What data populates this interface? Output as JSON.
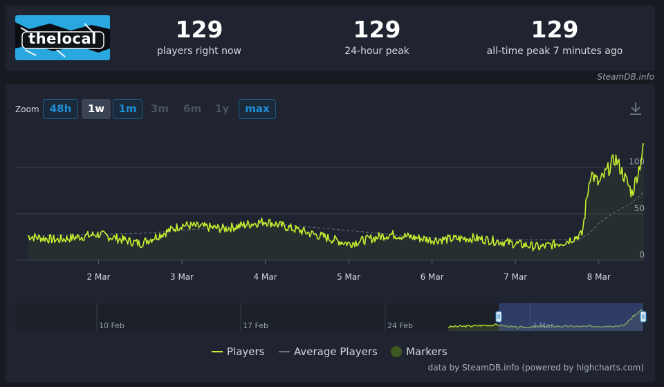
{
  "logo": {
    "text": "thelocal"
  },
  "stats": [
    {
      "value": "129",
      "label": "players right now"
    },
    {
      "value": "129",
      "label": "24-hour peak"
    },
    {
      "value": "129",
      "label": "all-time peak 7 minutes ago"
    }
  ],
  "credit_top": "SteamDB.info",
  "zoom": {
    "label": "Zoom",
    "buttons": [
      {
        "label": "48h",
        "state": "enabled"
      },
      {
        "label": "1w",
        "state": "selected"
      },
      {
        "label": "1m",
        "state": "enabled"
      },
      {
        "label": "3m",
        "state": "disabled"
      },
      {
        "label": "6m",
        "state": "disabled"
      },
      {
        "label": "1y",
        "state": "disabled"
      },
      {
        "label": "max",
        "state": "enabled"
      }
    ]
  },
  "download_icon": "download-icon",
  "legend": [
    {
      "label": "Players",
      "color": "#c6f02e",
      "kind": "line"
    },
    {
      "label": "Average Players",
      "color": "#6b7380",
      "kind": "line"
    },
    {
      "label": "Markers",
      "color": "#3e5a22",
      "kind": "dot"
    }
  ],
  "credit_bottom": "data by SteamDB.info (powered by highcharts.com)",
  "chart_data": {
    "type": "line",
    "x_ticks": [
      "2 Mar",
      "3 Mar",
      "4 Mar",
      "5 Mar",
      "6 Mar",
      "7 Mar",
      "8 Mar"
    ],
    "x": [
      1.15,
      1.5,
      2.0,
      2.5,
      3.0,
      3.5,
      4.0,
      4.5,
      5.0,
      5.5,
      6.0,
      6.5,
      7.0,
      7.3,
      7.6,
      7.8,
      7.9,
      8.0,
      8.2,
      8.4,
      8.5,
      8.55
    ],
    "ylim": [
      0,
      140
    ],
    "y_ticks": [
      0,
      50,
      100
    ],
    "series": [
      {
        "name": "Players",
        "color": "#c6f02e",
        "values": [
          26,
          22,
          28,
          18,
          38,
          34,
          42,
          30,
          18,
          28,
          22,
          24,
          18,
          14,
          20,
          28,
          95,
          82,
          110,
          72,
          105,
          128
        ]
      },
      {
        "name": "Average Players",
        "color": "#6b7380",
        "values": [
          26,
          27,
          28,
          29,
          32,
          36,
          40,
          36,
          32,
          28,
          24,
          22,
          22,
          22,
          22,
          24,
          30,
          40,
          52,
          62,
          70,
          75
        ]
      }
    ],
    "navigator": {
      "x_ticks": [
        "10 Feb",
        "17 Feb",
        "24 Feb",
        "3 Mar"
      ]
    }
  }
}
